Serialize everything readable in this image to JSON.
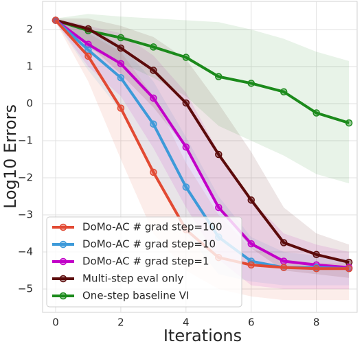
{
  "chart_data": {
    "type": "line",
    "x_label": "Iterations",
    "y_label": "Log10 Errors",
    "x": [
      0,
      1,
      2,
      3,
      4,
      5,
      6,
      7,
      8,
      9
    ],
    "xlim": [
      -0.4,
      9.25
    ],
    "xticks": [
      0,
      2,
      4,
      6,
      8
    ],
    "ylim": [
      -5.63,
      2.76
    ],
    "yticks": [
      {
        "value": -5,
        "label": "−5"
      },
      {
        "value": -4,
        "label": "−4"
      },
      {
        "value": -3,
        "label": "−3"
      },
      {
        "value": -2,
        "label": "−2"
      },
      {
        "value": -1,
        "label": "−1"
      },
      0,
      1,
      2
    ],
    "grid": true,
    "legend": "lower left",
    "series": [
      {
        "name": "DoMo-AC # grad step=100",
        "color": "#e24a33",
        "values": [
          2.25,
          1.28,
          -0.12,
          -1.85,
          -3.4,
          -4.15,
          -4.35,
          -4.42,
          -4.45,
          -4.45
        ],
        "lower": [
          2.2,
          0.6,
          -1.5,
          -3.5,
          -4.5,
          -5.0,
          -5.2,
          -5.3,
          -5.3,
          -5.3
        ],
        "upper": [
          2.3,
          1.9,
          1.4,
          0.2,
          -1.6,
          -3.0,
          -3.9,
          -4.2,
          -4.3,
          -4.3
        ]
      },
      {
        "name": "DoMo-AC # grad step=10",
        "color": "#3d9ad9",
        "values": [
          2.25,
          1.45,
          0.7,
          -0.55,
          -2.25,
          -3.6,
          -4.25,
          -4.42,
          -4.42,
          -4.45
        ],
        "lower": [
          2.2,
          0.9,
          -0.2,
          -1.8,
          -3.5,
          -4.6,
          -4.8,
          -4.9,
          -4.9,
          -4.9
        ],
        "upper": [
          2.3,
          2.0,
          1.6,
          0.6,
          -0.9,
          -2.5,
          -3.6,
          -4.0,
          -4.1,
          -4.2
        ]
      },
      {
        "name": "DoMo-AC # grad step=1",
        "color": "#c200c8",
        "values": [
          2.25,
          1.6,
          1.08,
          0.15,
          -1.17,
          -2.8,
          -3.78,
          -4.25,
          -4.35,
          -4.42
        ],
        "lower": [
          2.2,
          1.0,
          0.2,
          -1.2,
          -2.8,
          -4.2,
          -4.9,
          -5.0,
          -5.0,
          -5.0
        ],
        "upper": [
          2.3,
          2.1,
          1.9,
          1.3,
          0.3,
          -1.3,
          -2.6,
          -3.5,
          -3.8,
          -4.0
        ]
      },
      {
        "name": "Multi-step eval only",
        "color": "#5c0b0b",
        "values": [
          2.25,
          2.02,
          1.5,
          0.9,
          0.02,
          -1.37,
          -2.6,
          -3.75,
          -4.07,
          -4.28
        ],
        "lower": [
          2.2,
          1.6,
          0.8,
          -0.1,
          -1.2,
          -2.8,
          -3.9,
          -4.5,
          -4.6,
          -4.7
        ],
        "upper": [
          2.3,
          2.3,
          2.1,
          1.8,
          1.2,
          0.0,
          -1.3,
          -2.8,
          -3.5,
          -3.8
        ]
      },
      {
        "name": "One-step baseline VI",
        "color": "#1b8a1b",
        "values": [
          2.25,
          1.97,
          1.78,
          1.53,
          1.25,
          0.73,
          0.55,
          0.32,
          -0.25,
          -0.52
        ],
        "lower": [
          2.2,
          1.5,
          1.1,
          0.7,
          0.2,
          -0.6,
          -1.0,
          -1.4,
          -1.9,
          -2.15
        ],
        "upper": [
          2.3,
          2.42,
          2.35,
          2.3,
          2.25,
          2.2,
          2.0,
          1.75,
          1.4,
          1.15
        ]
      }
    ]
  }
}
